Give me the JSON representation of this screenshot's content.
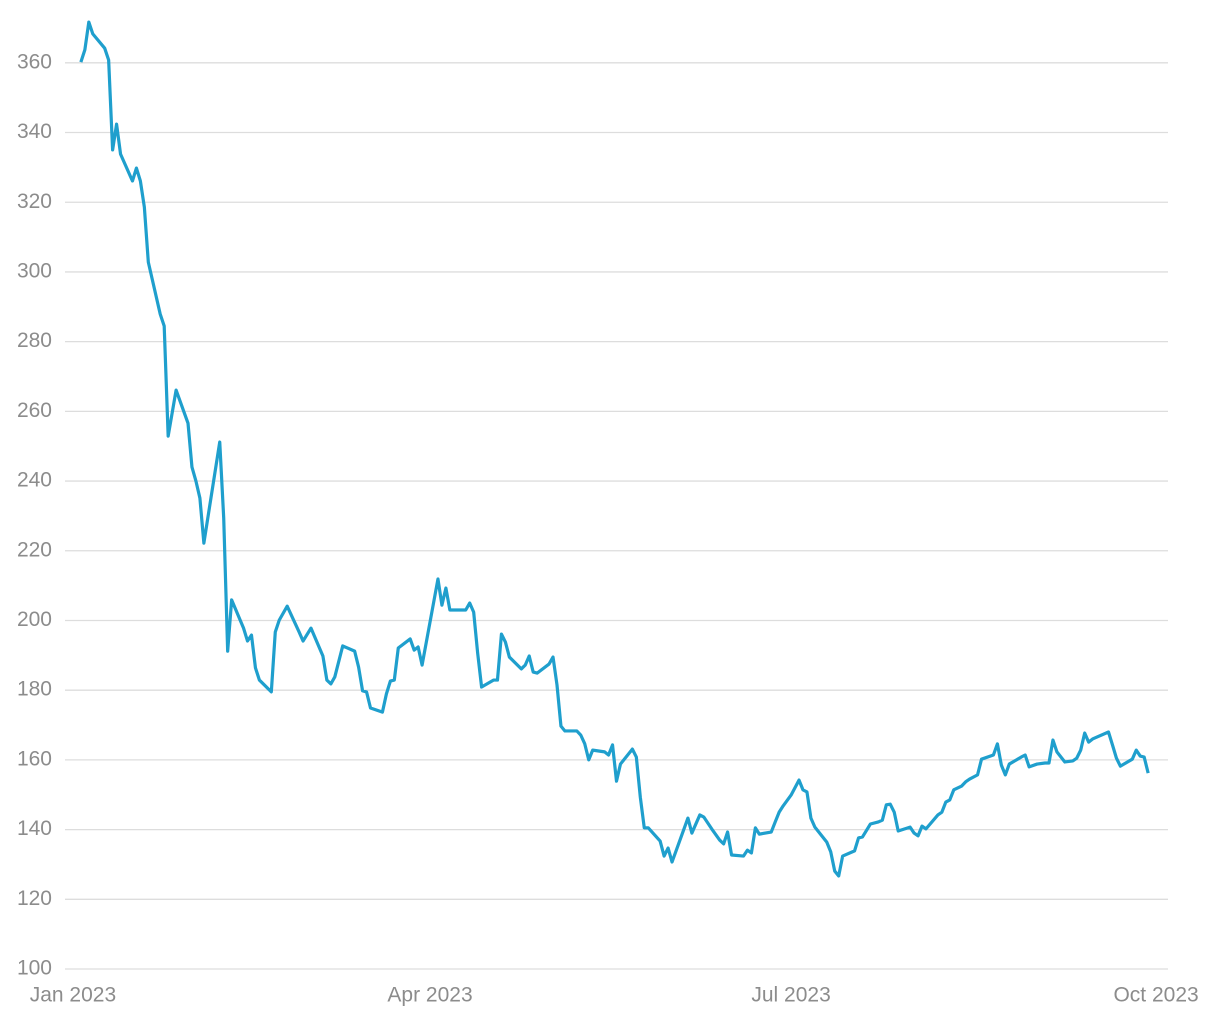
{
  "chart_data": {
    "type": "line",
    "x": [
      2,
      3,
      4,
      5,
      8,
      9,
      10,
      11,
      12,
      15,
      16,
      17,
      18,
      19,
      22,
      23,
      24,
      26,
      29,
      30,
      31,
      32,
      33,
      37,
      38,
      39,
      40,
      43,
      44,
      45,
      46,
      47,
      50,
      51,
      52,
      54,
      57,
      58,
      60,
      63,
      64,
      65,
      66,
      68,
      71,
      72,
      73,
      74,
      75,
      78,
      79,
      80,
      81,
      82,
      85,
      86,
      87,
      88,
      92,
      93,
      94,
      95,
      99,
      100,
      101,
      102,
      103,
      106,
      107,
      108,
      109,
      110,
      113,
      114,
      115,
      116,
      117,
      120,
      121,
      122,
      123,
      124,
      127,
      128,
      129,
      130,
      131,
      134,
      135,
      136,
      137,
      138,
      141,
      142,
      143,
      144,
      145,
      148,
      149,
      150,
      151,
      155,
      156,
      158,
      159,
      161,
      163,
      164,
      165,
      166,
      169,
      170,
      171,
      172,
      173,
      176,
      177,
      178,
      179,
      181,
      183,
      184,
      185,
      186,
      187,
      190,
      191,
      192,
      193,
      194,
      197,
      198,
      199,
      201,
      203,
      204,
      205,
      206,
      207,
      208,
      211,
      212,
      213,
      214,
      215,
      218,
      219,
      220,
      221,
      222,
      224,
      225,
      226,
      228,
      229,
      232,
      233,
      234,
      235,
      236,
      239,
      240,
      241,
      243,
      245,
      246,
      247,
      248,
      250,
      252,
      253,
      254,
      255,
      256,
      257,
      261,
      262,
      263,
      264,
      267,
      268,
      269,
      270,
      271
    ],
    "values": [
      360.2,
      363.7,
      371.7,
      368.3,
      364.2,
      360.8,
      335.0,
      342.4,
      333.8,
      326.1,
      329.8,
      326.1,
      318.6,
      302.8,
      287.9,
      284.5,
      252.9,
      266.1,
      256.6,
      244.0,
      240.0,
      235.1,
      222.2,
      251.2,
      229.4,
      191.2,
      205.9,
      197.8,
      194.1,
      195.8,
      186.4,
      182.9,
      179.5,
      196.7,
      200.1,
      204.1,
      196.7,
      194.1,
      197.8,
      189.8,
      182.9,
      181.8,
      183.8,
      192.7,
      191.2,
      186.6,
      179.8,
      179.5,
      174.9,
      173.7,
      178.9,
      182.6,
      182.9,
      192.1,
      194.7,
      191.5,
      192.4,
      187.2,
      211.9,
      204.4,
      209.3,
      203.0,
      203.0,
      205.0,
      202.4,
      190.7,
      180.9,
      182.9,
      182.9,
      196.1,
      193.8,
      189.5,
      186.1,
      187.2,
      189.8,
      185.2,
      184.9,
      187.5,
      189.5,
      181.5,
      169.7,
      168.3,
      168.3,
      167.1,
      164.6,
      160.0,
      162.8,
      162.3,
      161.4,
      164.3,
      153.9,
      158.8,
      163.1,
      160.8,
      149.3,
      140.5,
      140.5,
      136.7,
      132.4,
      134.7,
      130.7,
      143.3,
      139.0,
      144.2,
      143.6,
      140.2,
      137.0,
      135.9,
      139.3,
      132.7,
      132.4,
      134.1,
      133.3,
      140.5,
      138.7,
      139.3,
      142.2,
      145.0,
      146.8,
      149.9,
      154.2,
      151.4,
      150.8,
      143.3,
      140.7,
      136.4,
      133.6,
      128.1,
      126.7,
      132.4,
      133.9,
      137.6,
      137.9,
      141.6,
      142.2,
      142.7,
      147.1,
      147.3,
      145.0,
      139.6,
      140.7,
      139.0,
      138.2,
      141.0,
      140.2,
      144.2,
      145.0,
      147.9,
      148.5,
      151.4,
      152.5,
      153.7,
      154.5,
      155.7,
      160.2,
      161.4,
      164.6,
      158.5,
      155.7,
      158.8,
      160.8,
      161.4,
      158.0,
      158.8,
      159.1,
      159.1,
      165.7,
      162.3,
      159.4,
      159.7,
      160.5,
      162.8,
      167.7,
      165.1,
      166.0,
      168.0,
      164.3,
      160.5,
      158.2,
      160.2,
      162.8,
      161.1,
      160.8,
      156.2
    ],
    "color": "#1f9fcd",
    "xlim": [
      -2,
      276
    ],
    "xticks": [
      {
        "value": 0,
        "label": "Jan 2023"
      },
      {
        "value": 90,
        "label": "Apr 2023"
      },
      {
        "value": 181,
        "label": "Jul 2023"
      },
      {
        "value": 273,
        "label": "Oct 2023"
      }
    ],
    "ylim": [
      100,
      372
    ],
    "yticks": [
      100,
      120,
      140,
      160,
      180,
      200,
      220,
      240,
      260,
      280,
      300,
      320,
      340,
      360
    ],
    "grid": true
  }
}
